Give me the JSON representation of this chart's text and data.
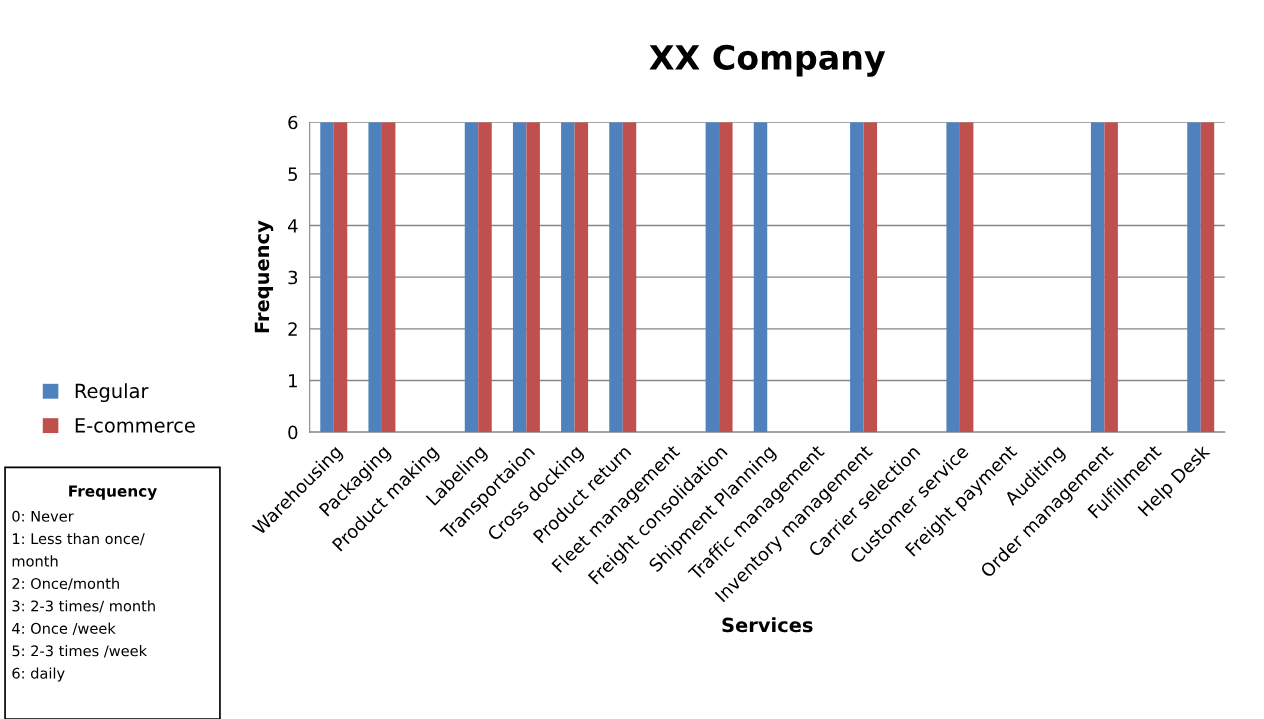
{
  "chart_data": {
    "type": "bar",
    "title": "XX Company",
    "xlabel": "Services",
    "ylabel": "Frequency",
    "categories": [
      "Warehousing",
      "Packaging",
      "Product making",
      "Labeling",
      "Transportaion",
      "Cross docking",
      "Product return",
      "Fleet management",
      "Freight consolidation",
      "Shipment Planning",
      "Traffic management",
      "Inventory management",
      "Carrier selection",
      "Customer service",
      "Freight payment",
      "Auditing",
      "Order management",
      "Fulfillment",
      "Help Desk"
    ],
    "series": [
      {
        "name": "Regular",
        "color": "#4f81bd",
        "values": [
          6,
          6,
          0,
          6,
          6,
          6,
          6,
          0,
          6,
          6,
          0,
          6,
          0,
          6,
          0,
          0,
          6,
          0,
          6
        ]
      },
      {
        "name": "E-commerce",
        "color": "#c0504d",
        "values": [
          6,
          6,
          0,
          6,
          6,
          6,
          6,
          0,
          6,
          0,
          0,
          6,
          0,
          6,
          0,
          0,
          6,
          0,
          6
        ]
      }
    ],
    "ylim": [
      0,
      6
    ],
    "yticks": [
      0,
      1,
      2,
      3,
      4,
      5,
      6
    ],
    "grid": "y",
    "legend": "left",
    "annotations": [
      "Frequency",
      "0: Never\n1: Less than once/\nmonth\n2: Once/month\n3: 2-3 times/ month\n4: Once /week\n5: 2-3 times /week\n6: daily"
    ]
  }
}
